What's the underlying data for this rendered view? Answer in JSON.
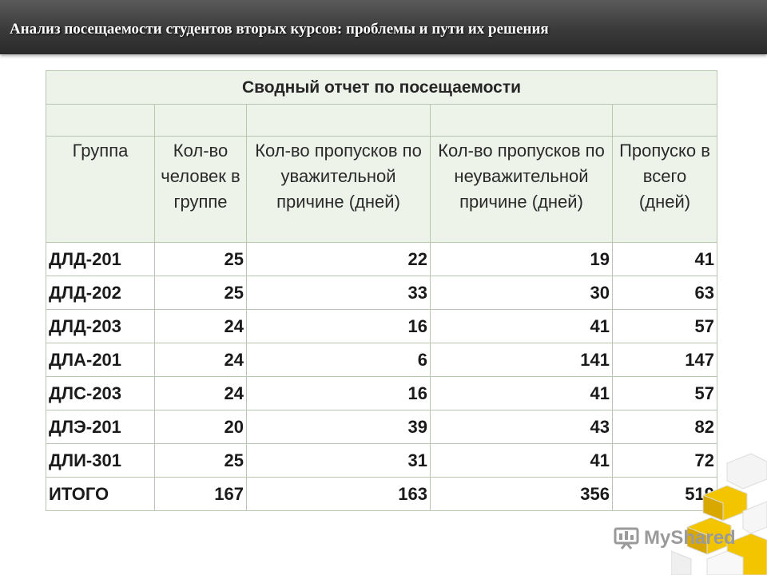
{
  "slide": {
    "title": "Анализ посещаемости студентов вторых курсов: проблемы и пути их решения"
  },
  "table": {
    "caption": "Сводный отчет по посещаемости",
    "headers": [
      "Группа",
      "Кол-во человек в группе",
      "Кол-во пропусков по уважительной причине (дней)",
      "Кол-во пропусков по неуважительной причине (дней)",
      "Пропуско в всего (дней)"
    ],
    "rows": [
      {
        "group": "ДЛД-201",
        "students": "25",
        "excused": "22",
        "unexcused": "19",
        "total": "41"
      },
      {
        "group": "ДЛД-202",
        "students": "25",
        "excused": "33",
        "unexcused": "30",
        "total": "63"
      },
      {
        "group": "ДЛД-203",
        "students": "24",
        "excused": "16",
        "unexcused": "41",
        "total": "57"
      },
      {
        "group": "ДЛА-201",
        "students": "24",
        "excused": "6",
        "unexcused": "141",
        "total": "147"
      },
      {
        "group": "ДЛС-203",
        "students": "24",
        "excused": "16",
        "unexcused": "41",
        "total": "57"
      },
      {
        "group": "ДЛЭ-201",
        "students": "20",
        "excused": "39",
        "unexcused": "43",
        "total": "82"
      },
      {
        "group": "ДЛИ-301",
        "students": "25",
        "excused": "31",
        "unexcused": "41",
        "total": "72"
      },
      {
        "group": "ИТОГО",
        "students": "167",
        "excused": "163",
        "unexcused": "356",
        "total": "519"
      }
    ]
  },
  "watermark": {
    "text": "MyShared",
    "icon": "presentation-screen-icon"
  }
}
